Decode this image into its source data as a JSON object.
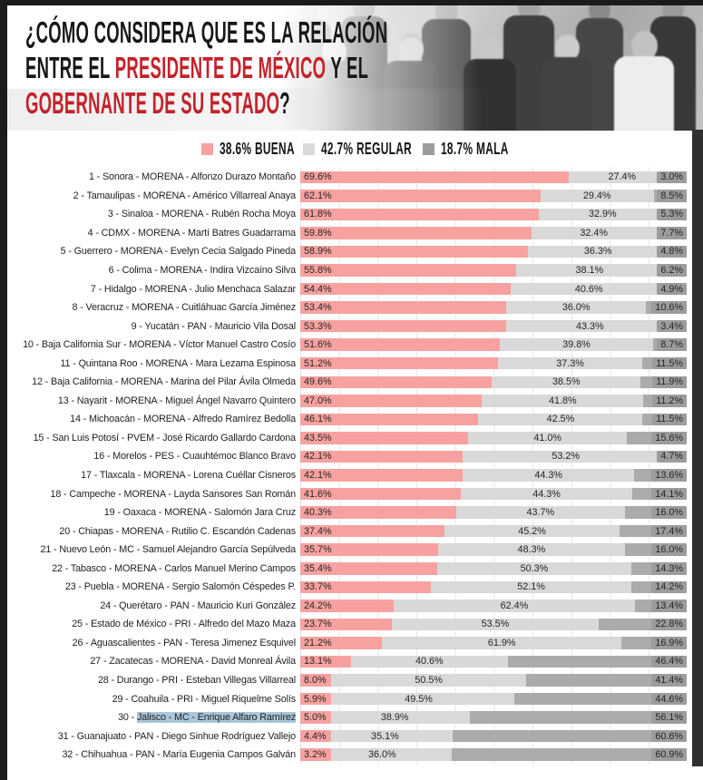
{
  "header": {
    "title_line1": "¿CÓMO CONSIDERA QUE ES LA RELACIÓN",
    "title_line2_black1": "ENTRE EL ",
    "title_line2_red": "PRESIDENTE DE MÉXICO",
    "title_line2_black2": " Y EL",
    "title_line3_red": "GOBERNANTE DE SU ESTADO",
    "title_line3_black": "?"
  },
  "legend": {
    "items": [
      {
        "label": "38.6% BUENA",
        "color": "#f7a2a0"
      },
      {
        "label": "42.7% REGULAR",
        "color": "#d9d9d9"
      },
      {
        "label": "18.7% MALA",
        "color": "#9c9c9c"
      }
    ]
  },
  "colors": {
    "buena": "#f7a2a0",
    "regular": "#d9d9d9",
    "mala_segment": "#ababab",
    "mala_pill": "#9c9c9c",
    "title_red": "#c4222a",
    "highlight_blue": "#a9c7dc",
    "gridline": "#e4e4e4"
  },
  "chart_data": {
    "type": "bar",
    "orientation": "horizontal",
    "stacked": true,
    "unit": "%",
    "title": "¿Cómo considera que es la relación entre el Presidente de México y el gobernante de su estado?",
    "series_names": [
      "Buena",
      "Regular",
      "Mala"
    ],
    "overall": {
      "buena": 38.6,
      "regular": 42.7,
      "mala": 18.7
    },
    "xlim": [
      0,
      100
    ],
    "grid": true,
    "rows": [
      {
        "rank": 1,
        "state": "Sonora",
        "party": "MORENA",
        "governor": "Alfonzo Durazo Montaño",
        "buena": 69.6,
        "regular": 27.4,
        "mala": 3.0,
        "highlighted": false
      },
      {
        "rank": 2,
        "state": "Tamaulipas",
        "party": "MORENA",
        "governor": "Américo Villarreal Anaya",
        "buena": 62.1,
        "regular": 29.4,
        "mala": 8.5,
        "highlighted": false
      },
      {
        "rank": 3,
        "state": "Sinaloa",
        "party": "MORENA",
        "governor": "Rubén Rocha Moya",
        "buena": 61.8,
        "regular": 32.9,
        "mala": 5.3,
        "highlighted": false
      },
      {
        "rank": 4,
        "state": "CDMX",
        "party": "MORENA",
        "governor": "Martí Batres Guadarrama",
        "buena": 59.8,
        "regular": 32.4,
        "mala": 7.7,
        "highlighted": false
      },
      {
        "rank": 5,
        "state": "Guerrero",
        "party": "MORENA",
        "governor": "Evelyn Cecia Salgado Pineda",
        "buena": 58.9,
        "regular": 36.3,
        "mala": 4.8,
        "highlighted": false
      },
      {
        "rank": 6,
        "state": "Colima",
        "party": "MORENA",
        "governor": "Indira Vizcaíno Silva",
        "buena": 55.8,
        "regular": 38.1,
        "mala": 6.2,
        "highlighted": false
      },
      {
        "rank": 7,
        "state": "Hidalgo",
        "party": "MORENA",
        "governor": "Julio Menchaca Salazar",
        "buena": 54.4,
        "regular": 40.6,
        "mala": 4.9,
        "highlighted": false
      },
      {
        "rank": 8,
        "state": "Veracruz",
        "party": "MORENA",
        "governor": "Cuitláhuac García Jiménez",
        "buena": 53.4,
        "regular": 36.0,
        "mala": 10.6,
        "highlighted": false
      },
      {
        "rank": 9,
        "state": "Yucatán",
        "party": "PAN",
        "governor": "Mauricio Vila Dosal",
        "buena": 53.3,
        "regular": 43.3,
        "mala": 3.4,
        "highlighted": false
      },
      {
        "rank": 10,
        "state": "Baja California Sur",
        "party": "MORENA",
        "governor": "Víctor Manuel Castro Cosío",
        "buena": 51.6,
        "regular": 39.8,
        "mala": 8.7,
        "highlighted": false
      },
      {
        "rank": 11,
        "state": "Quintana Roo",
        "party": "MORENA",
        "governor": "Mara Lezama Espinosa",
        "buena": 51.2,
        "regular": 37.3,
        "mala": 11.5,
        "highlighted": false
      },
      {
        "rank": 12,
        "state": "Baja California",
        "party": "MORENA",
        "governor": "Marina del Pilar Ávila Olmeda",
        "buena": 49.6,
        "regular": 38.5,
        "mala": 11.9,
        "highlighted": false
      },
      {
        "rank": 13,
        "state": "Nayarit",
        "party": "MORENA",
        "governor": "Miguel Ángel Navarro Quintero",
        "buena": 47.0,
        "regular": 41.8,
        "mala": 11.2,
        "highlighted": false
      },
      {
        "rank": 14,
        "state": "Michoacán",
        "party": "MORENA",
        "governor": "Alfredo Ramírez Bedolla",
        "buena": 46.1,
        "regular": 42.5,
        "mala": 11.5,
        "highlighted": false
      },
      {
        "rank": 15,
        "state": "San Luis Potosí",
        "party": "PVEM",
        "governor": "José Ricardo Gallardo Cardona",
        "buena": 43.5,
        "regular": 41.0,
        "mala": 15.6,
        "highlighted": false
      },
      {
        "rank": 16,
        "state": "Morelos",
        "party": "PES",
        "governor": "Cuauhtémoc Blanco Bravo",
        "buena": 42.1,
        "regular": 53.2,
        "mala": 4.7,
        "highlighted": false
      },
      {
        "rank": 17,
        "state": "Tlaxcala",
        "party": "MORENA",
        "governor": "Lorena Cuéllar Cisneros",
        "buena": 42.1,
        "regular": 44.3,
        "mala": 13.6,
        "highlighted": false
      },
      {
        "rank": 18,
        "state": "Campeche",
        "party": "MORENA",
        "governor": "Layda Sansores San Román",
        "buena": 41.6,
        "regular": 44.3,
        "mala": 14.1,
        "highlighted": false
      },
      {
        "rank": 19,
        "state": "Oaxaca",
        "party": "MORENA",
        "governor": "Salomón Jara Cruz",
        "buena": 40.3,
        "regular": 43.7,
        "mala": 16.0,
        "highlighted": false
      },
      {
        "rank": 20,
        "state": "Chiapas",
        "party": "MORENA",
        "governor": "Rutilio C. Escandón Cadenas",
        "buena": 37.4,
        "regular": 45.2,
        "mala": 17.4,
        "highlighted": false
      },
      {
        "rank": 21,
        "state": "Nuevo León",
        "party": "MC",
        "governor": "Samuel Alejandro García Sepúlveda",
        "buena": 35.7,
        "regular": 48.3,
        "mala": 16.0,
        "highlighted": false
      },
      {
        "rank": 22,
        "state": "Tabasco",
        "party": "MORENA",
        "governor": "Carlos Manuel Merino Campos",
        "buena": 35.4,
        "regular": 50.3,
        "mala": 14.3,
        "highlighted": false
      },
      {
        "rank": 23,
        "state": "Puebla",
        "party": "MORENA",
        "governor": "Sergio Salomón Céspedes P.",
        "buena": 33.7,
        "regular": 52.1,
        "mala": 14.2,
        "highlighted": false
      },
      {
        "rank": 24,
        "state": "Querétaro",
        "party": "PAN",
        "governor": "Mauricio Kuri González",
        "buena": 24.2,
        "regular": 62.4,
        "mala": 13.4,
        "highlighted": false
      },
      {
        "rank": 25,
        "state": "Estado de México",
        "party": "PRI",
        "governor": "Alfredo del Mazo Maza",
        "buena": 23.7,
        "regular": 53.5,
        "mala": 22.8,
        "highlighted": false
      },
      {
        "rank": 26,
        "state": "Aguascalientes",
        "party": "PAN",
        "governor": "Teresa Jimenez Esquivel",
        "buena": 21.2,
        "regular": 61.9,
        "mala": 16.9,
        "highlighted": false
      },
      {
        "rank": 27,
        "state": "Zacatecas",
        "party": "MORENA",
        "governor": "David Monreal Ávila",
        "buena": 13.1,
        "regular": 40.6,
        "mala": 46.4,
        "highlighted": false
      },
      {
        "rank": 28,
        "state": "Durango",
        "party": "PRI",
        "governor": "Esteban Villegas Villarreal",
        "buena": 8.0,
        "regular": 50.5,
        "mala": 41.4,
        "highlighted": false
      },
      {
        "rank": 29,
        "state": "Coahuila",
        "party": "PRI",
        "governor": "Miguel Riquelme Solís",
        "buena": 5.9,
        "regular": 49.5,
        "mala": 44.6,
        "highlighted": false
      },
      {
        "rank": 30,
        "state": "Jalisco",
        "party": "MC",
        "governor": "Enrique Alfaro Ramírez",
        "buena": 5.0,
        "regular": 38.9,
        "mala": 56.1,
        "highlighted": true
      },
      {
        "rank": 31,
        "state": "Guanajuato",
        "party": "PAN",
        "governor": "Diego Sinhue Rodríguez Vallejo",
        "buena": 4.4,
        "regular": 35.1,
        "mala": 60.6,
        "highlighted": false
      },
      {
        "rank": 32,
        "state": "Chihuahua",
        "party": "PAN",
        "governor": "María Eugenia Campos Galván",
        "buena": 3.2,
        "regular": 36.0,
        "mala": 60.9,
        "highlighted": false
      }
    ]
  }
}
